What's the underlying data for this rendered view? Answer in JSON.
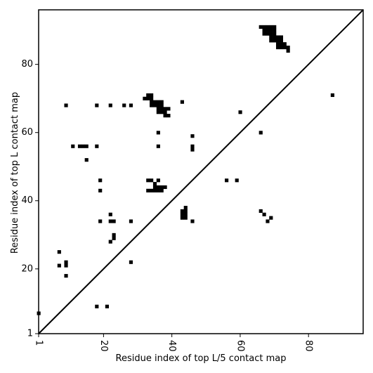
{
  "chart_data": {
    "type": "scatter",
    "title": "",
    "xlabel": "Residue index of top L/5 contact map",
    "ylabel": "Residue index of top L contact map",
    "xlim": [
      1,
      96
    ],
    "ylim": [
      1,
      96
    ],
    "xticks": [
      1,
      20,
      40,
      60,
      80
    ],
    "yticks": [
      1,
      20,
      40,
      60,
      80
    ],
    "x_tick_rotation": -90,
    "grid": false,
    "diagonal": true,
    "marker": "square",
    "marker_color": "#000000",
    "upper_triangle_points": [
      [
        1,
        7
      ],
      [
        9,
        18
      ],
      [
        9,
        21
      ],
      [
        9,
        22
      ],
      [
        7,
        21
      ],
      [
        7,
        25
      ],
      [
        18,
        9
      ],
      [
        21,
        9
      ],
      [
        28,
        22
      ],
      [
        22,
        28
      ],
      [
        23,
        29
      ],
      [
        23,
        30
      ],
      [
        19,
        34
      ],
      [
        22,
        34
      ],
      [
        23,
        34
      ],
      [
        28,
        34
      ],
      [
        22,
        36
      ],
      [
        19,
        43
      ],
      [
        19,
        46
      ],
      [
        15,
        52
      ],
      [
        11,
        56
      ],
      [
        13,
        56
      ],
      [
        14,
        56
      ],
      [
        15,
        56
      ],
      [
        18,
        56
      ],
      [
        9,
        68
      ],
      [
        18,
        68
      ],
      [
        22,
        68
      ],
      [
        26,
        68
      ],
      [
        28,
        68
      ],
      [
        33,
        43
      ],
      [
        34,
        43
      ],
      [
        35,
        43
      ],
      [
        36,
        43
      ],
      [
        37,
        43
      ],
      [
        35,
        44
      ],
      [
        36,
        44
      ],
      [
        37,
        44
      ],
      [
        38,
        44
      ],
      [
        35,
        45
      ],
      [
        33,
        46
      ],
      [
        34,
        46
      ],
      [
        36,
        46
      ],
      [
        36,
        56
      ],
      [
        36,
        60
      ],
      [
        36,
        66
      ],
      [
        37,
        66
      ],
      [
        38,
        66
      ],
      [
        38,
        65
      ],
      [
        39,
        65
      ],
      [
        36,
        67
      ],
      [
        37,
        67
      ],
      [
        38,
        67
      ],
      [
        39,
        67
      ],
      [
        34,
        68
      ],
      [
        35,
        68
      ],
      [
        36,
        68
      ],
      [
        37,
        68
      ],
      [
        34,
        69
      ],
      [
        35,
        69
      ],
      [
        36,
        69
      ],
      [
        37,
        69
      ],
      [
        33,
        70
      ],
      [
        34,
        70
      ],
      [
        32,
        70
      ],
      [
        33,
        71
      ],
      [
        34,
        71
      ],
      [
        43,
        69
      ]
    ],
    "lower_triangle_points": [
      [
        43,
        35
      ],
      [
        44,
        35
      ],
      [
        43,
        36
      ],
      [
        44,
        36
      ],
      [
        43,
        37
      ],
      [
        44,
        37
      ],
      [
        44,
        38
      ],
      [
        46,
        34
      ],
      [
        46,
        55
      ],
      [
        46,
        56
      ],
      [
        46,
        59
      ],
      [
        56,
        46
      ],
      [
        59,
        46
      ],
      [
        60,
        66
      ],
      [
        66,
        37
      ],
      [
        66,
        60
      ],
      [
        67,
        36
      ],
      [
        68,
        34
      ],
      [
        69,
        35
      ],
      [
        67,
        89
      ],
      [
        68,
        89
      ],
      [
        69,
        89
      ],
      [
        67,
        90
      ],
      [
        68,
        90
      ],
      [
        69,
        90
      ],
      [
        69,
        87
      ],
      [
        70,
        87
      ],
      [
        71,
        87
      ],
      [
        72,
        87
      ],
      [
        69,
        88
      ],
      [
        70,
        88
      ],
      [
        71,
        88
      ],
      [
        72,
        88
      ],
      [
        70,
        89
      ],
      [
        70,
        90
      ],
      [
        69,
        91
      ],
      [
        70,
        91
      ],
      [
        66,
        91
      ],
      [
        67,
        91
      ],
      [
        68,
        91
      ],
      [
        71,
        85
      ],
      [
        72,
        85
      ],
      [
        73,
        85
      ],
      [
        74,
        85
      ],
      [
        71,
        86
      ],
      [
        72,
        86
      ],
      [
        73,
        86
      ],
      [
        74,
        84
      ],
      [
        87,
        71
      ]
    ]
  }
}
